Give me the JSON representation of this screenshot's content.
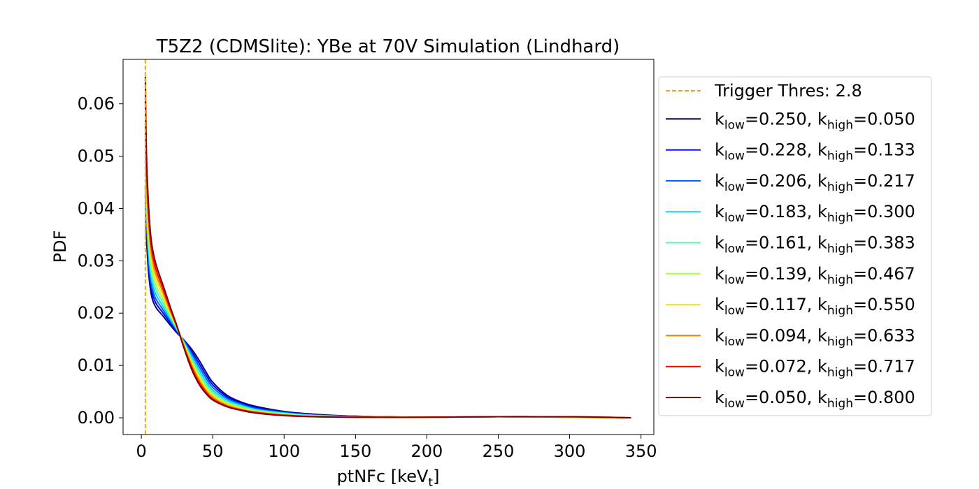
{
  "chart_data": {
    "type": "line",
    "title": "T5Z2 (CDMSlite): YBe at 70V Simulation (Lindhard)",
    "xlabel_main": "ptNFc [keV",
    "xlabel_sub": "t",
    "xlabel_end": "]",
    "ylabel": "PDF",
    "xlim": [
      -12.8,
      359
    ],
    "ylim": [
      -0.0032,
      0.0685
    ],
    "xticks": [
      0,
      50,
      100,
      150,
      200,
      250,
      300,
      350
    ],
    "xtick_labels": [
      "0",
      "50",
      "100",
      "150",
      "200",
      "250",
      "300",
      "350"
    ],
    "yticks": [
      0.0,
      0.01,
      0.02,
      0.03,
      0.04,
      0.05,
      0.06
    ],
    "ytick_labels": [
      "0.00",
      "0.01",
      "0.02",
      "0.03",
      "0.04",
      "0.05",
      "0.06"
    ],
    "grid": false,
    "legend_position": "outside-right",
    "threshold": {
      "label": "Trigger Thres: 2.8",
      "x": 2.8,
      "color": "#ffa500",
      "style": "dashed"
    },
    "series": [
      {
        "k_low": "0.250",
        "k_high": "0.050",
        "color": "#00007f",
        "x": [
          2.8,
          3.5,
          5,
          7,
          10,
          15,
          20,
          25,
          30,
          35,
          40,
          45,
          50,
          60,
          70,
          80,
          100,
          120,
          150,
          200,
          250,
          300,
          343
        ],
        "y": [
          0.0426,
          0.035,
          0.028,
          0.0235,
          0.0212,
          0.0195,
          0.0178,
          0.0162,
          0.0148,
          0.0132,
          0.0112,
          0.0089,
          0.0068,
          0.0043,
          0.003,
          0.0022,
          0.0012,
          0.0007,
          0.0003,
          0.0001,
          0.0002,
          0.0001,
          0.0
        ]
      },
      {
        "k_low": "0.228",
        "k_high": "0.133",
        "color": "#0000f1",
        "x": [
          2.8,
          3.5,
          5,
          7,
          10,
          15,
          20,
          25,
          30,
          35,
          40,
          45,
          50,
          60,
          70,
          80,
          100,
          120,
          150,
          200,
          250,
          300,
          343
        ],
        "y": [
          0.044,
          0.0365,
          0.0292,
          0.0245,
          0.022,
          0.0201,
          0.0182,
          0.0164,
          0.0147,
          0.0128,
          0.0106,
          0.0083,
          0.0063,
          0.004,
          0.0028,
          0.002,
          0.0011,
          0.0006,
          0.0003,
          0.0001,
          0.0002,
          0.0001,
          0.0
        ]
      },
      {
        "k_low": "0.206",
        "k_high": "0.217",
        "color": "#0060ff",
        "x": [
          2.8,
          3.5,
          5,
          7,
          10,
          15,
          20,
          25,
          30,
          35,
          40,
          45,
          50,
          60,
          70,
          80,
          100,
          120,
          150,
          200,
          250,
          300,
          343
        ],
        "y": [
          0.0425,
          0.038,
          0.0305,
          0.0255,
          0.0228,
          0.0207,
          0.0186,
          0.0166,
          0.0146,
          0.0124,
          0.01,
          0.0077,
          0.0058,
          0.0037,
          0.0026,
          0.0018,
          0.001,
          0.0005,
          0.0002,
          0.0001,
          0.0002,
          0.0001,
          0.0
        ]
      },
      {
        "k_low": "0.183",
        "k_high": "0.300",
        "color": "#00d4ff",
        "x": [
          2.8,
          3.5,
          5,
          7,
          10,
          15,
          20,
          25,
          30,
          35,
          40,
          45,
          50,
          60,
          70,
          80,
          100,
          120,
          150,
          200,
          250,
          300,
          343
        ],
        "y": [
          0.0445,
          0.0395,
          0.0318,
          0.0266,
          0.0237,
          0.0213,
          0.019,
          0.0168,
          0.0144,
          0.0119,
          0.0094,
          0.0071,
          0.0053,
          0.0034,
          0.0024,
          0.0016,
          0.0009,
          0.0005,
          0.0002,
          0.0001,
          0.0002,
          0.0001,
          0.0
        ]
      },
      {
        "k_low": "0.161",
        "k_high": "0.383",
        "color": "#4cffaa",
        "x": [
          2.8,
          3.5,
          5,
          7,
          10,
          15,
          20,
          25,
          30,
          35,
          40,
          45,
          50,
          60,
          70,
          80,
          100,
          120,
          150,
          200,
          250,
          300,
          343
        ],
        "y": [
          0.0455,
          0.041,
          0.0332,
          0.0277,
          0.0246,
          0.022,
          0.0194,
          0.017,
          0.0142,
          0.0114,
          0.0088,
          0.0066,
          0.0049,
          0.0031,
          0.0022,
          0.0015,
          0.0008,
          0.0004,
          0.0002,
          0.0001,
          0.0002,
          0.0001,
          0.0
        ]
      },
      {
        "k_low": "0.139",
        "k_high": "0.467",
        "color": "#aaff4c",
        "x": [
          2.8,
          3.5,
          5,
          7,
          10,
          15,
          20,
          25,
          30,
          35,
          40,
          45,
          50,
          60,
          70,
          80,
          100,
          120,
          150,
          200,
          250,
          300,
          343
        ],
        "y": [
          0.0475,
          0.0428,
          0.0347,
          0.029,
          0.0256,
          0.0227,
          0.0198,
          0.0171,
          0.014,
          0.011,
          0.0083,
          0.0061,
          0.0045,
          0.0028,
          0.002,
          0.0013,
          0.0007,
          0.0004,
          0.0002,
          0.0001,
          0.0002,
          0.0001,
          0.0
        ]
      },
      {
        "k_low": "0.117",
        "k_high": "0.550",
        "color": "#ffe500",
        "x": [
          2.8,
          3.5,
          5,
          7,
          10,
          15,
          20,
          25,
          30,
          35,
          40,
          45,
          50,
          60,
          70,
          80,
          100,
          120,
          150,
          200,
          250,
          300,
          343
        ],
        "y": [
          0.051,
          0.0448,
          0.0362,
          0.0302,
          0.0266,
          0.0234,
          0.0202,
          0.0172,
          0.0138,
          0.0106,
          0.0078,
          0.0057,
          0.0042,
          0.0026,
          0.0018,
          0.0012,
          0.0006,
          0.0003,
          0.0001,
          0.0001,
          0.0002,
          0.0001,
          0.0
        ]
      },
      {
        "k_low": "0.094",
        "k_high": "0.633",
        "color": "#ff7a00",
        "x": [
          2.8,
          3.5,
          5,
          7,
          10,
          15,
          20,
          25,
          30,
          35,
          40,
          45,
          50,
          60,
          70,
          80,
          100,
          120,
          150,
          200,
          250,
          300,
          343
        ],
        "y": [
          0.0562,
          0.047,
          0.0378,
          0.0315,
          0.0276,
          0.0241,
          0.0206,
          0.0173,
          0.0136,
          0.0102,
          0.0074,
          0.0053,
          0.0039,
          0.0024,
          0.0016,
          0.0011,
          0.0005,
          0.0003,
          0.0001,
          0.0001,
          0.0002,
          0.0001,
          0.0
        ]
      },
      {
        "k_low": "0.072",
        "k_high": "0.717",
        "color": "#f10800",
        "x": [
          2.8,
          3.5,
          5,
          7,
          10,
          15,
          20,
          25,
          30,
          35,
          40,
          45,
          50,
          60,
          70,
          80,
          100,
          120,
          150,
          200,
          250,
          300,
          343
        ],
        "y": [
          0.0612,
          0.0492,
          0.0393,
          0.0327,
          0.0286,
          0.0248,
          0.021,
          0.0174,
          0.0134,
          0.0098,
          0.007,
          0.005,
          0.0036,
          0.0022,
          0.0015,
          0.001,
          0.0005,
          0.0002,
          0.0001,
          0.0001,
          0.0002,
          0.0002,
          0.0
        ]
      },
      {
        "k_low": "0.050",
        "k_high": "0.800",
        "color": "#7f0000",
        "x": [
          2.8,
          3.5,
          5,
          7,
          10,
          15,
          20,
          25,
          30,
          35,
          40,
          45,
          50,
          60,
          70,
          80,
          100,
          120,
          150,
          200,
          250,
          300,
          343
        ],
        "y": [
          0.0652,
          0.0515,
          0.0408,
          0.0338,
          0.0296,
          0.0255,
          0.0214,
          0.0175,
          0.0132,
          0.0094,
          0.0066,
          0.0047,
          0.0034,
          0.0021,
          0.0014,
          0.0009,
          0.0004,
          0.0002,
          0.0001,
          0.0001,
          0.0002,
          0.0002,
          0.0
        ]
      }
    ]
  }
}
